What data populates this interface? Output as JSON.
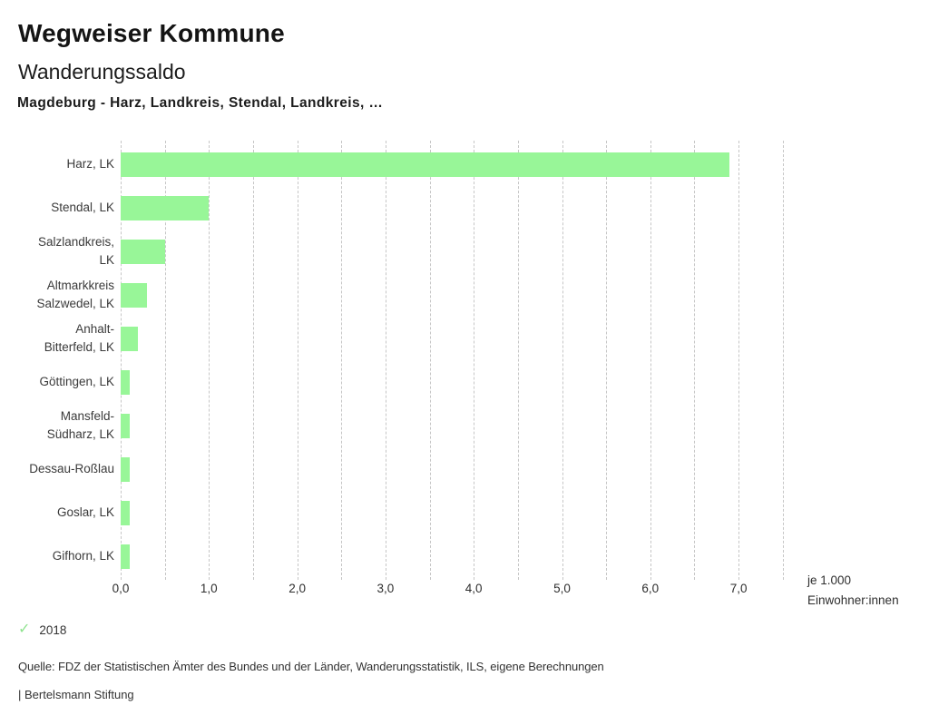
{
  "header": {
    "app_title": "Wegweiser Kommune",
    "chart_title": "Wanderungssaldo",
    "chart_subtitle": "Magdeburg - Harz, Landkreis, Stendal, Landkreis, …"
  },
  "chart_data": {
    "type": "bar",
    "orientation": "horizontal",
    "title": "Wanderungssaldo",
    "categories": [
      "Harz, LK",
      "Stendal, LK",
      "Salzlandkreis,\nLK",
      "Altmarkkreis\nSalzwedel, LK",
      "Anhalt-\nBitterfeld, LK",
      "Göttingen, LK",
      "Mansfeld-\nSüdharz, LK",
      "Dessau-Roßlau",
      "Goslar, LK",
      "Gifhorn, LK"
    ],
    "series": [
      {
        "name": "2018",
        "values": [
          6.9,
          1.0,
          0.5,
          0.3,
          0.2,
          0.1,
          0.1,
          0.1,
          0.1,
          0.1
        ]
      }
    ],
    "xlabel": "je 1.000 Einwohner:innen",
    "unit_label_lines": [
      "je 1.000",
      "Einwohner:innen"
    ],
    "xlim": [
      0,
      7.5
    ],
    "x_tick_values": [
      0,
      1,
      2,
      3,
      4,
      5,
      6,
      7
    ],
    "x_tick_labels": [
      "0,0",
      "1,0",
      "2,0",
      "3,0",
      "4,0",
      "5,0",
      "6,0",
      "7,0"
    ],
    "grid": "vertical dashed lines every 0.5",
    "legend_position": "bottom-left",
    "bar_color": "#98f698",
    "gridline_color": "#c6c6c6"
  },
  "legend": {
    "items": [
      {
        "label": "2018",
        "checked": true
      }
    ],
    "check_color": "#8fe38f"
  },
  "icons": {
    "legend_check": "✓"
  },
  "footer": {
    "source": "Quelle: FDZ der Statistischen Ämter des Bundes und der Länder, Wanderungsstatistik, ILS, eigene Berechnungen",
    "attribution": "| Bertelsmann Stiftung"
  }
}
